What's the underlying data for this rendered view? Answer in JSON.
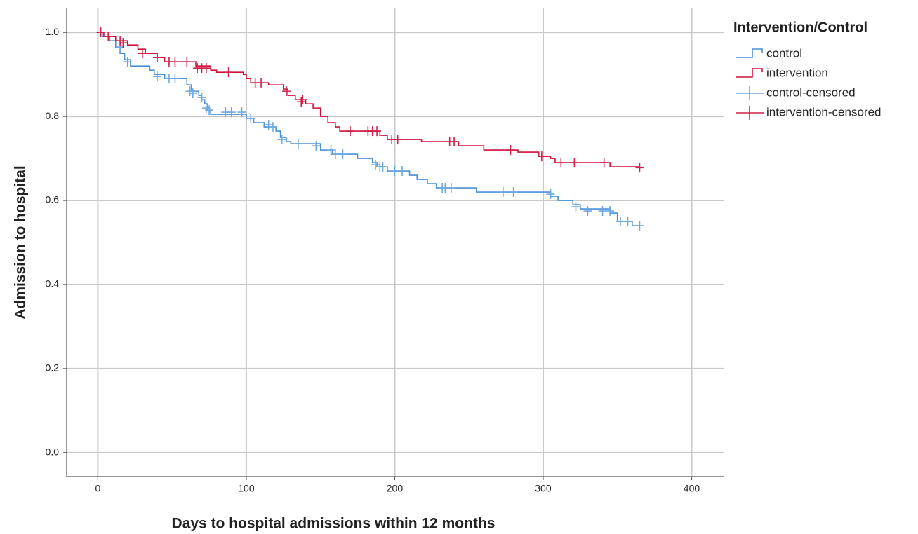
{
  "chart_data": {
    "type": "kaplan-meier",
    "xlabel": "Days to hospital admissions within 12 months",
    "ylabel": "Admission to hospital",
    "legend_title": "Intervention/Control",
    "legend": "right",
    "grid": true,
    "xlim": [
      -21,
      422
    ],
    "ylim": [
      -0.057,
      1.057
    ],
    "xticks": [
      0,
      100,
      200,
      300,
      400
    ],
    "yticks": [
      {
        "value": 0,
        "label": "0.0"
      },
      0.2,
      0.4,
      0.6,
      0.8,
      {
        "value": 1,
        "label": "1.0"
      }
    ],
    "series": [
      {
        "name": "control",
        "type": "step",
        "color": "#4a90d9",
        "x": [
          0,
          3,
          8,
          12,
          15,
          18,
          22,
          35,
          38,
          45,
          60,
          63,
          68,
          70,
          72,
          74,
          76,
          100,
          105,
          112,
          120,
          123,
          127,
          130,
          150,
          158,
          175,
          185,
          188,
          195,
          210,
          215,
          222,
          228,
          255,
          305,
          310,
          320,
          325,
          345,
          350,
          360,
          365
        ],
        "values": [
          1.0,
          0.99,
          0.98,
          0.965,
          0.95,
          0.935,
          0.92,
          0.91,
          0.9,
          0.89,
          0.875,
          0.86,
          0.85,
          0.84,
          0.83,
          0.815,
          0.805,
          0.795,
          0.785,
          0.775,
          0.765,
          0.75,
          0.74,
          0.735,
          0.72,
          0.71,
          0.7,
          0.69,
          0.68,
          0.67,
          0.66,
          0.65,
          0.64,
          0.63,
          0.62,
          0.61,
          0.6,
          0.59,
          0.58,
          0.57,
          0.55,
          0.54,
          0.54
        ]
      },
      {
        "name": "intervention",
        "type": "step",
        "color": "#d0103a",
        "x": [
          0,
          4,
          12,
          20,
          27,
          32,
          40,
          45,
          66,
          76,
          80,
          98,
          100,
          103,
          115,
          125,
          128,
          133,
          140,
          145,
          150,
          155,
          160,
          163,
          190,
          195,
          218,
          243,
          260,
          283,
          297,
          305,
          308,
          345,
          365
        ],
        "values": [
          1.0,
          0.99,
          0.98,
          0.97,
          0.96,
          0.95,
          0.94,
          0.93,
          0.92,
          0.91,
          0.905,
          0.9,
          0.89,
          0.88,
          0.875,
          0.865,
          0.85,
          0.84,
          0.83,
          0.82,
          0.8,
          0.785,
          0.775,
          0.765,
          0.755,
          0.745,
          0.74,
          0.73,
          0.72,
          0.715,
          0.705,
          0.7,
          0.69,
          0.68,
          0.675
        ]
      },
      {
        "name": "control-censored",
        "type": "censor",
        "color": "#6fa8e0",
        "x": [
          15,
          20,
          40,
          48,
          52,
          62,
          64,
          70,
          73,
          75,
          86,
          90,
          97,
          103,
          115,
          118,
          124,
          135,
          147,
          157,
          160,
          165,
          187,
          190,
          192,
          200,
          205,
          232,
          234,
          238,
          273,
          280,
          305,
          322,
          330,
          340,
          345,
          352,
          357,
          365
        ],
        "values": [
          0.965,
          0.93,
          0.895,
          0.89,
          0.89,
          0.86,
          0.855,
          0.845,
          0.82,
          0.815,
          0.81,
          0.81,
          0.81,
          0.795,
          0.78,
          0.775,
          0.745,
          0.735,
          0.73,
          0.72,
          0.71,
          0.71,
          0.685,
          0.68,
          0.68,
          0.67,
          0.67,
          0.63,
          0.63,
          0.63,
          0.62,
          0.62,
          0.615,
          0.585,
          0.575,
          0.575,
          0.575,
          0.55,
          0.55,
          0.54
        ]
      },
      {
        "name": "intervention-censored",
        "type": "censor",
        "color": "#d0214a",
        "x": [
          2,
          7,
          15,
          17,
          30,
          40,
          48,
          52,
          60,
          67,
          70,
          73,
          88,
          106,
          110,
          127,
          137,
          138,
          170,
          182,
          185,
          188,
          198,
          202,
          237,
          240,
          278,
          299,
          312,
          321,
          341,
          365
        ],
        "values": [
          1.0,
          0.99,
          0.98,
          0.975,
          0.95,
          0.94,
          0.93,
          0.93,
          0.93,
          0.915,
          0.915,
          0.915,
          0.905,
          0.88,
          0.88,
          0.86,
          0.835,
          0.84,
          0.765,
          0.765,
          0.765,
          0.765,
          0.745,
          0.745,
          0.74,
          0.74,
          0.72,
          0.705,
          0.69,
          0.69,
          0.69,
          0.678
        ]
      }
    ]
  }
}
